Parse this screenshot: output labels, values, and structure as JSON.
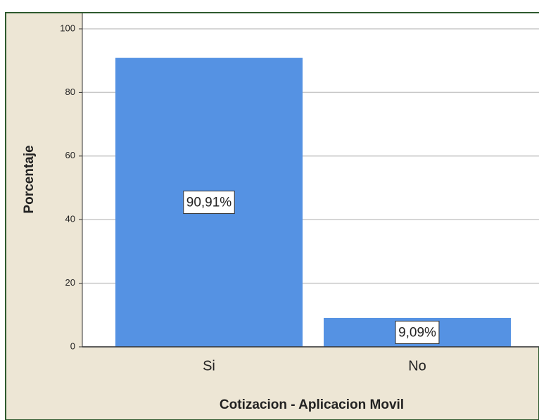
{
  "chart_data": {
    "type": "bar",
    "x_label": "Cotizacion - Aplicacion Movil",
    "y_label": "Porcentaje",
    "categories": [
      "Si",
      "No"
    ],
    "values": [
      90.91,
      9.09
    ],
    "value_labels": [
      "90,91%",
      "9,09%"
    ],
    "color": "#5592e3",
    "ylim": [
      0,
      100
    ],
    "yticks": [
      0,
      20,
      40,
      60,
      80,
      100
    ],
    "grid": true
  }
}
